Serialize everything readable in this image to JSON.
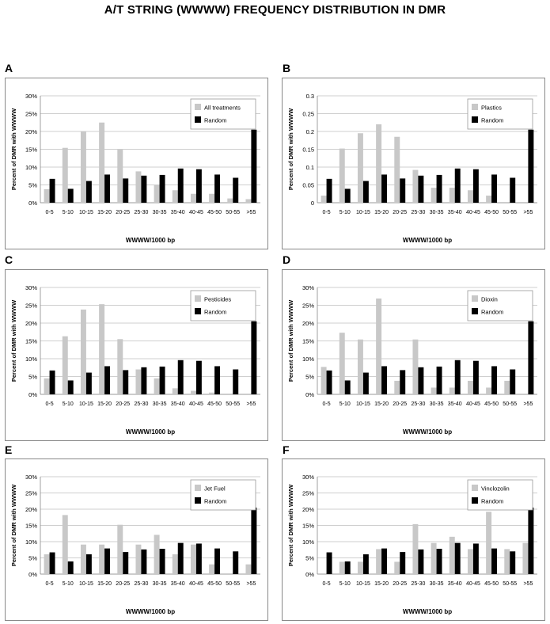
{
  "title": "A/T STRING (WWWW) FREQUENCY DISTRIBUTION IN DMR",
  "colors": {
    "treatment": "#c8c8c8",
    "random": "#000000",
    "grid": "#bfbfbf",
    "frame": "#888888"
  },
  "chart_data": [
    {
      "panel": "A",
      "type": "bar",
      "categories": [
        "0-5",
        "5-10",
        "10-15",
        "15-20",
        "20-25",
        "25-30",
        "30-35",
        "35-40",
        "40-45",
        "45-50",
        "50-55",
        ">55"
      ],
      "series": [
        {
          "name": "All treatments",
          "values": [
            3.8,
            15.4,
            20.0,
            22.5,
            15.0,
            8.8,
            5.0,
            3.5,
            2.5,
            2.5,
            1.2,
            1.0
          ]
        },
        {
          "name": "Random",
          "values": [
            6.7,
            3.9,
            6.1,
            7.9,
            6.8,
            7.6,
            7.8,
            9.6,
            9.4,
            7.9,
            7.0,
            20.5
          ]
        }
      ],
      "ylabel": "Percent of DMR with WWWW",
      "xlabel": "WWWW/1000 bp",
      "yticks": [
        "0%",
        "5%",
        "10%",
        "15%",
        "20%",
        "25%",
        "30%"
      ],
      "ylim": [
        0,
        30
      ],
      "legend_position": "top-right"
    },
    {
      "panel": "B",
      "type": "bar",
      "categories": [
        "0-5",
        "5-10",
        "10-15",
        "15-20",
        "20-25",
        "25-30",
        "30-35",
        "35-40",
        "40-45",
        "45-50",
        "50-55",
        ">55"
      ],
      "series": [
        {
          "name": "Plastics",
          "values": [
            2.0,
            15.2,
            19.5,
            22.0,
            18.5,
            9.2,
            4.2,
            4.2,
            3.5,
            2.0,
            0,
            0
          ]
        },
        {
          "name": "Random",
          "values": [
            6.7,
            3.9,
            6.1,
            7.9,
            6.8,
            7.6,
            7.8,
            9.6,
            9.4,
            7.9,
            7.0,
            20.5
          ]
        }
      ],
      "ylabel": "Percent of DMR with WWWW",
      "xlabel": "WWWW/1000 bp",
      "yticks": [
        "0",
        "0.05",
        "0.1",
        "0.15",
        "0.2",
        "0.25",
        "0.3"
      ],
      "ylim": [
        0,
        30
      ],
      "legend_position": "top-right"
    },
    {
      "panel": "C",
      "type": "bar",
      "categories": [
        "0-5",
        "5-10",
        "10-15",
        "15-20",
        "20-25",
        "25-30",
        "30-35",
        "35-40",
        "40-45",
        "45-50",
        "50-55",
        ">55"
      ],
      "series": [
        {
          "name": "Pesticides",
          "values": [
            4.5,
            16.3,
            23.8,
            25.3,
            15.5,
            7.0,
            4.5,
            1.7,
            1.0,
            0.5,
            0,
            0
          ]
        },
        {
          "name": "Random",
          "values": [
            6.7,
            3.9,
            6.1,
            7.9,
            6.8,
            7.6,
            7.8,
            9.6,
            9.4,
            7.9,
            7.0,
            20.5
          ]
        }
      ],
      "ylabel": "Percent of DMR with WWWW",
      "xlabel": "WWWW/1000 bp",
      "yticks": [
        "0%",
        "5%",
        "10%",
        "15%",
        "20%",
        "25%",
        "30%"
      ],
      "ylim": [
        0,
        30
      ],
      "legend_position": "top-right"
    },
    {
      "panel": "D",
      "type": "bar",
      "categories": [
        "0-5",
        "5-10",
        "10-15",
        "15-20",
        "20-25",
        "25-30",
        "30-35",
        "35-40",
        "40-45",
        "45-50",
        "50-55",
        ">55"
      ],
      "series": [
        {
          "name": "Dioxin",
          "values": [
            7.7,
            17.3,
            15.4,
            26.9,
            3.8,
            15.4,
            1.9,
            1.9,
            3.8,
            1.9,
            3.8,
            0
          ]
        },
        {
          "name": "Random",
          "values": [
            6.7,
            3.9,
            6.1,
            7.9,
            6.8,
            7.6,
            7.8,
            9.6,
            9.4,
            7.9,
            7.0,
            20.5
          ]
        }
      ],
      "ylabel": "Percent of DMR with WWWW",
      "xlabel": "WWWW/1000 bp",
      "yticks": [
        "0%",
        "5%",
        "10%",
        "15%",
        "20%",
        "25%",
        "30%"
      ],
      "ylim": [
        0,
        30
      ],
      "legend_position": "top-right"
    },
    {
      "panel": "E",
      "type": "bar",
      "categories": [
        "0-5",
        "5-10",
        "10-15",
        "15-20",
        "20-25",
        "25-30",
        "30-35",
        "35-40",
        "40-45",
        "45-50",
        "50-55",
        ">55"
      ],
      "series": [
        {
          "name": "Jet Fuel",
          "values": [
            6.1,
            18.2,
            9.1,
            9.1,
            15.2,
            9.1,
            12.1,
            6.1,
            9.1,
            3.0,
            0,
            3.0
          ]
        },
        {
          "name": "Random",
          "values": [
            6.7,
            3.9,
            6.1,
            7.9,
            6.8,
            7.6,
            7.8,
            9.6,
            9.4,
            7.9,
            7.0,
            20.5
          ]
        }
      ],
      "ylabel": "Percent of DMR with WWWW",
      "xlabel": "WWWW/1000 bp",
      "yticks": [
        "0%",
        "5%",
        "10%",
        "15%",
        "20%",
        "25%",
        "30%"
      ],
      "ylim": [
        0,
        30
      ],
      "legend_position": "top-right"
    },
    {
      "panel": "F",
      "type": "bar",
      "categories": [
        "0-5",
        "5-10",
        "10-15",
        "15-20",
        "20-25",
        "25-30",
        "30-35",
        "35-40",
        "40-45",
        "45-50",
        "50-55",
        ">55"
      ],
      "series": [
        {
          "name": "Vinclozolin",
          "values": [
            0,
            3.8,
            3.8,
            7.7,
            3.8,
            15.4,
            9.6,
            11.5,
            7.7,
            19.2,
            7.7,
            9.6
          ]
        },
        {
          "name": "Random",
          "values": [
            6.7,
            3.9,
            6.1,
            7.9,
            6.8,
            7.6,
            7.8,
            9.6,
            9.4,
            7.9,
            7.0,
            20.5
          ]
        }
      ],
      "ylabel": "Percent of DMR with WWWW",
      "xlabel": "WWWW/1000 bp",
      "yticks": [
        "0%",
        "5%",
        "10%",
        "15%",
        "20%",
        "25%",
        "30%"
      ],
      "ylim": [
        0,
        30
      ],
      "legend_position": "top-right"
    }
  ]
}
